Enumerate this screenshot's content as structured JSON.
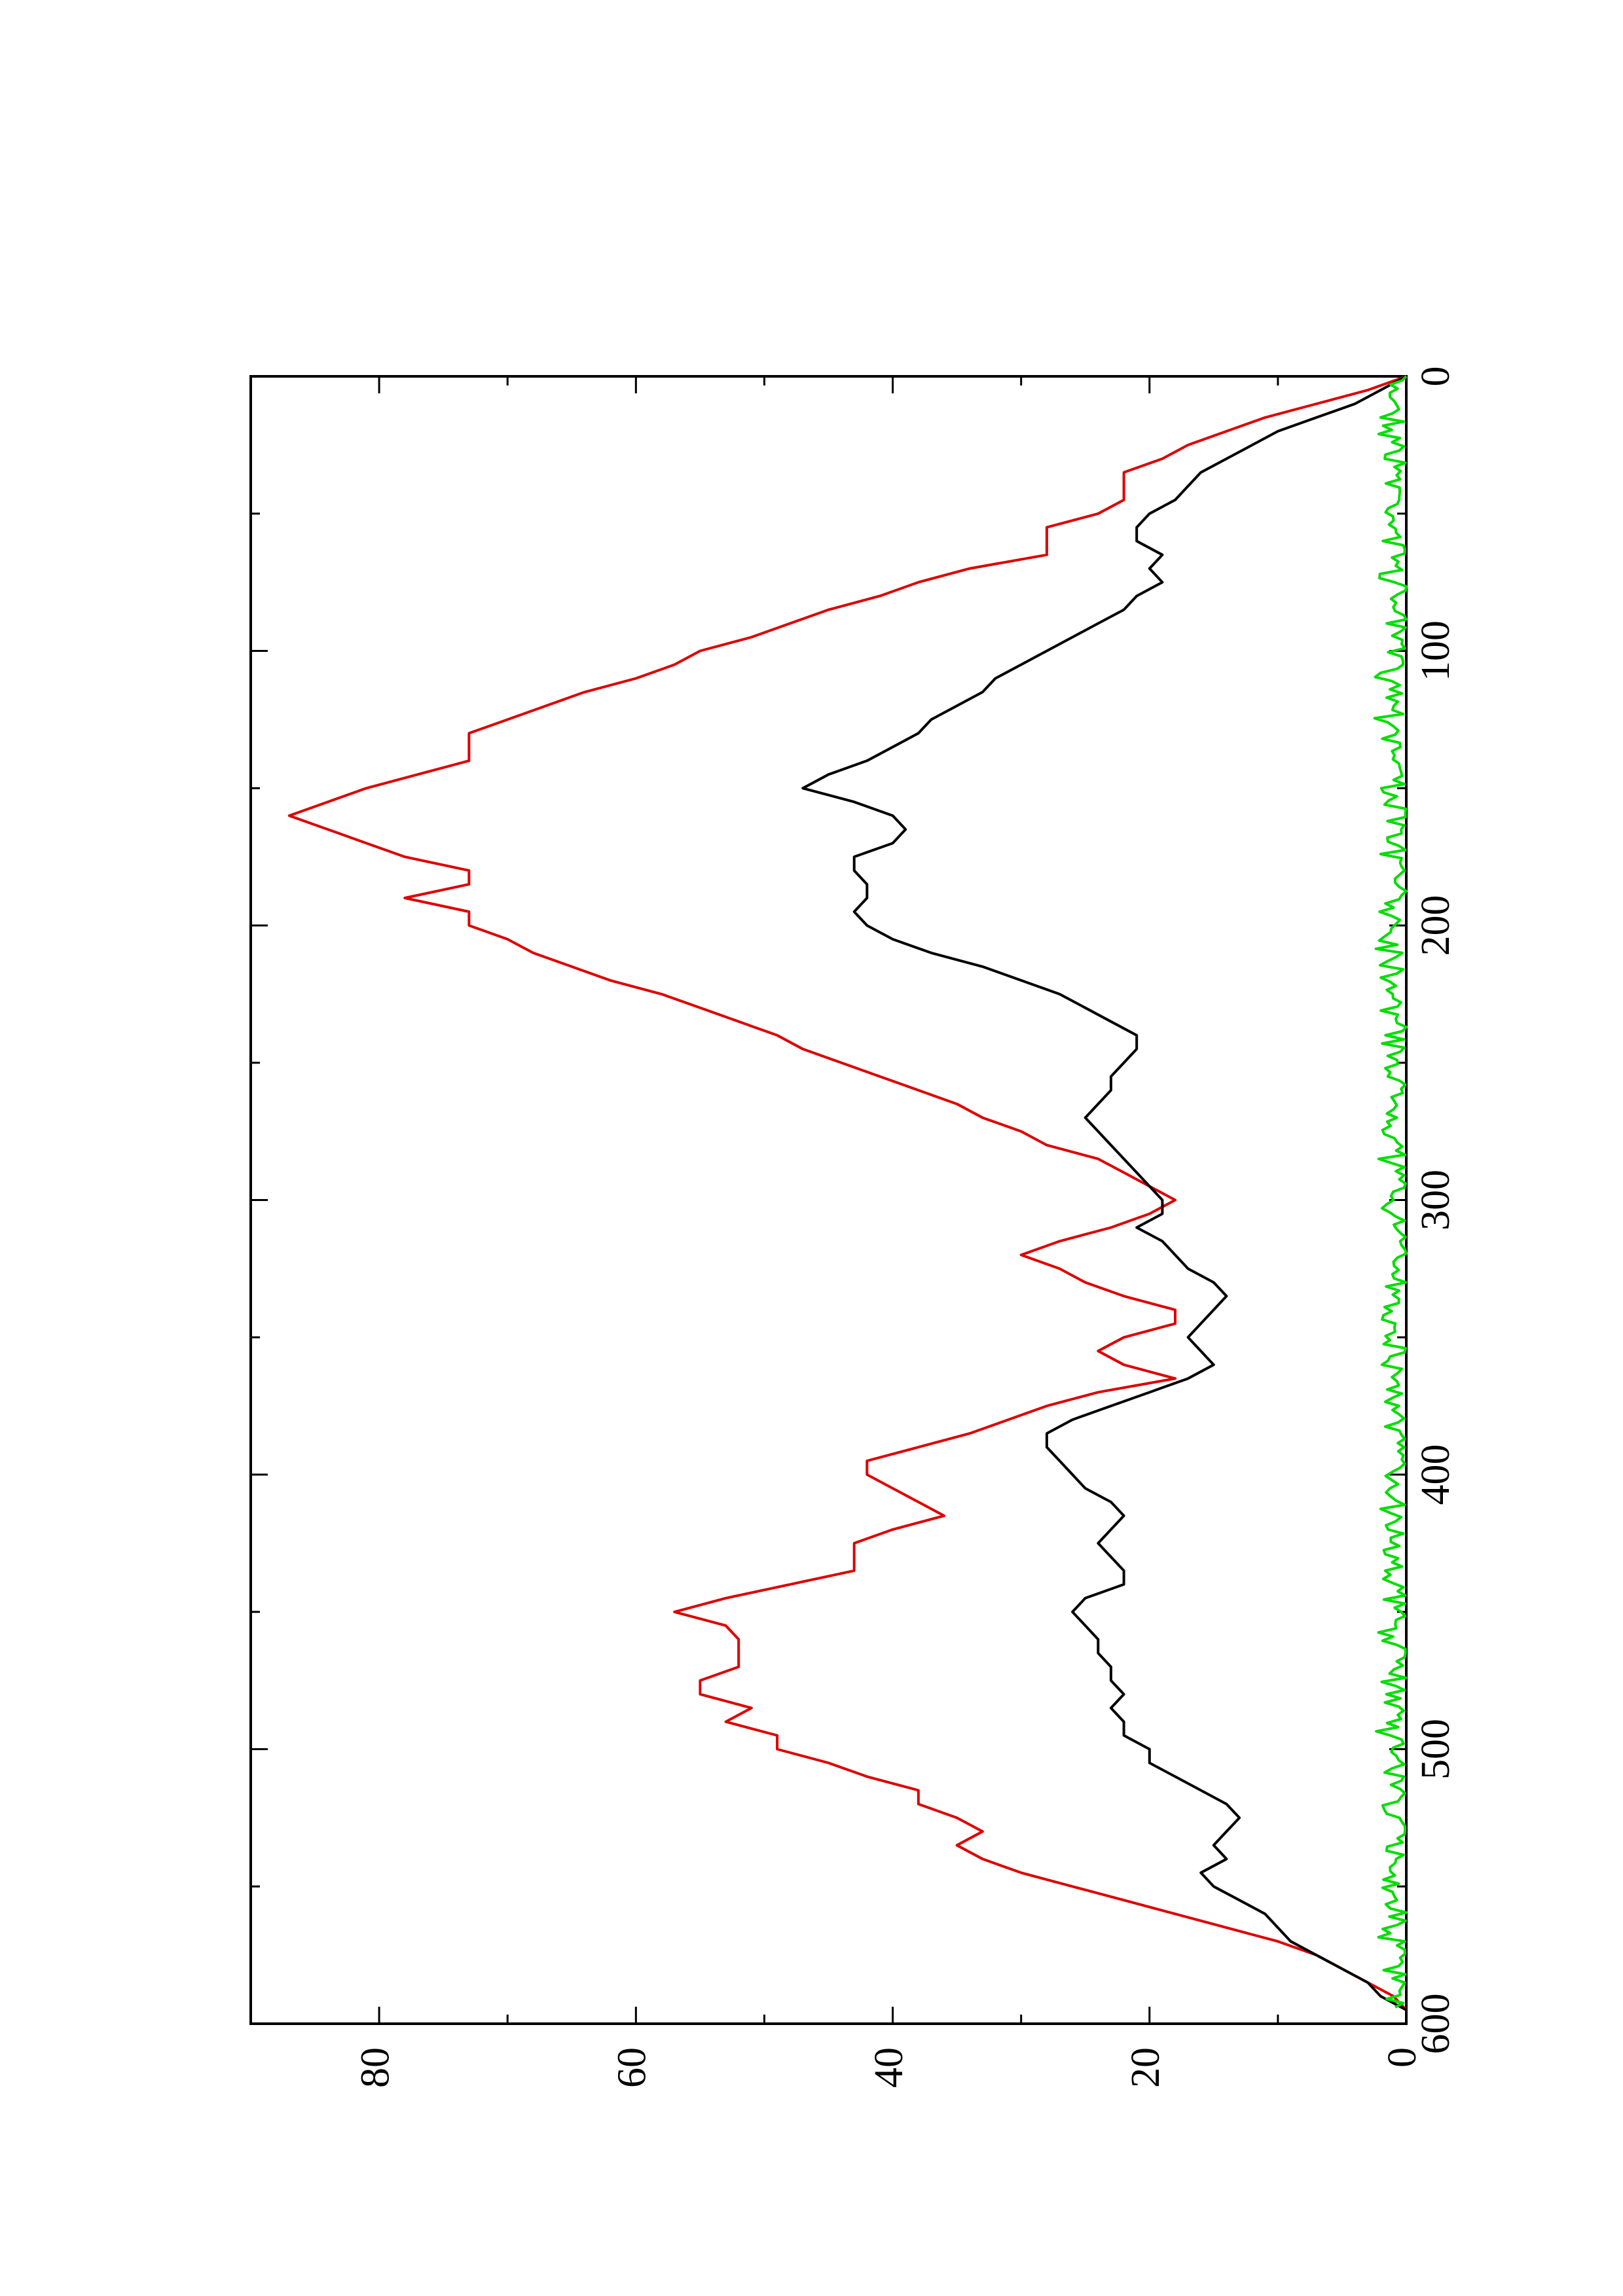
{
  "chart_data": {
    "type": "line",
    "title": "",
    "xlabel": "",
    "ylabel": "",
    "orientation": "rotated-90-ccw",
    "xlim": [
      0,
      600
    ],
    "ylim": [
      0,
      90
    ],
    "x_ticks_major": [
      0,
      100,
      200,
      300,
      400,
      500,
      600
    ],
    "x_ticks_minor": [
      50,
      150,
      250,
      350,
      450,
      550
    ],
    "y_ticks_major": [
      0,
      20,
      40,
      60,
      80
    ],
    "y_ticks_minor": [
      10,
      30,
      50,
      70
    ],
    "x_tick_labels": [
      "0",
      "100",
      "200",
      "300",
      "400",
      "500",
      "600"
    ],
    "y_tick_labels": [
      "0",
      "20",
      "40",
      "60",
      "80"
    ],
    "grid": false,
    "legend": "none",
    "series": [
      {
        "color": "#dd0000",
        "style": "step",
        "points": [
          [
            0,
            0
          ],
          [
            5,
            3
          ],
          [
            10,
            7
          ],
          [
            15,
            11
          ],
          [
            20,
            14
          ],
          [
            25,
            17
          ],
          [
            30,
            19
          ],
          [
            35,
            22
          ],
          [
            45,
            22
          ],
          [
            50,
            24
          ],
          [
            55,
            28
          ],
          [
            65,
            28
          ],
          [
            70,
            34
          ],
          [
            75,
            38
          ],
          [
            80,
            41
          ],
          [
            85,
            45
          ],
          [
            90,
            48
          ],
          [
            95,
            51
          ],
          [
            100,
            55
          ],
          [
            105,
            57
          ],
          [
            110,
            60
          ],
          [
            115,
            64
          ],
          [
            120,
            67
          ],
          [
            125,
            70
          ],
          [
            130,
            73
          ],
          [
            140,
            73
          ],
          [
            145,
            77
          ],
          [
            150,
            81
          ],
          [
            155,
            84
          ],
          [
            160,
            87
          ],
          [
            165,
            84
          ],
          [
            170,
            81
          ],
          [
            175,
            78
          ],
          [
            180,
            73
          ],
          [
            185,
            73
          ],
          [
            190,
            78
          ],
          [
            195,
            73
          ],
          [
            200,
            73
          ],
          [
            205,
            70
          ],
          [
            210,
            68
          ],
          [
            215,
            65
          ],
          [
            220,
            62
          ],
          [
            225,
            58
          ],
          [
            230,
            55
          ],
          [
            235,
            52
          ],
          [
            240,
            49
          ],
          [
            245,
            47
          ],
          [
            250,
            44
          ],
          [
            255,
            41
          ],
          [
            260,
            38
          ],
          [
            265,
            35
          ],
          [
            270,
            33
          ],
          [
            275,
            30
          ],
          [
            280,
            28
          ],
          [
            285,
            24
          ],
          [
            290,
            22
          ],
          [
            295,
            20
          ],
          [
            300,
            18
          ],
          [
            305,
            20
          ],
          [
            310,
            23
          ],
          [
            315,
            27
          ],
          [
            320,
            30
          ],
          [
            325,
            27
          ],
          [
            330,
            25
          ],
          [
            335,
            22
          ],
          [
            340,
            18
          ],
          [
            345,
            18
          ],
          [
            350,
            22
          ],
          [
            355,
            24
          ],
          [
            360,
            22
          ],
          [
            365,
            18
          ],
          [
            370,
            24
          ],
          [
            375,
            28
          ],
          [
            380,
            31
          ],
          [
            385,
            34
          ],
          [
            390,
            38
          ],
          [
            395,
            42
          ],
          [
            400,
            42
          ],
          [
            405,
            40
          ],
          [
            410,
            38
          ],
          [
            415,
            36
          ],
          [
            420,
            40
          ],
          [
            425,
            43
          ],
          [
            430,
            43
          ],
          [
            435,
            43
          ],
          [
            440,
            48
          ],
          [
            445,
            53
          ],
          [
            450,
            57
          ],
          [
            455,
            53
          ],
          [
            460,
            52
          ],
          [
            470,
            52
          ],
          [
            475,
            55
          ],
          [
            480,
            55
          ],
          [
            485,
            51
          ],
          [
            490,
            53
          ],
          [
            495,
            49
          ],
          [
            500,
            49
          ],
          [
            505,
            45
          ],
          [
            510,
            42
          ],
          [
            515,
            38
          ],
          [
            520,
            38
          ],
          [
            525,
            35
          ],
          [
            530,
            33
          ],
          [
            535,
            35
          ],
          [
            540,
            33
          ],
          [
            545,
            30
          ],
          [
            550,
            26
          ],
          [
            555,
            22
          ],
          [
            560,
            18
          ],
          [
            565,
            14
          ],
          [
            570,
            10
          ],
          [
            575,
            7
          ],
          [
            580,
            5
          ],
          [
            585,
            3
          ],
          [
            590,
            1
          ],
          [
            595,
            0
          ]
        ]
      },
      {
        "color": "#000000",
        "style": "line",
        "points": [
          [
            0,
            0
          ],
          [
            5,
            2
          ],
          [
            10,
            4
          ],
          [
            15,
            7
          ],
          [
            20,
            10
          ],
          [
            25,
            12
          ],
          [
            30,
            14
          ],
          [
            35,
            16
          ],
          [
            40,
            17
          ],
          [
            45,
            18
          ],
          [
            50,
            20
          ],
          [
            55,
            21
          ],
          [
            60,
            21
          ],
          [
            65,
            19
          ],
          [
            70,
            20
          ],
          [
            75,
            19
          ],
          [
            80,
            21
          ],
          [
            85,
            22
          ],
          [
            90,
            24
          ],
          [
            95,
            26
          ],
          [
            100,
            28
          ],
          [
            105,
            30
          ],
          [
            110,
            32
          ],
          [
            115,
            33
          ],
          [
            120,
            35
          ],
          [
            125,
            37
          ],
          [
            130,
            38
          ],
          [
            135,
            40
          ],
          [
            140,
            42
          ],
          [
            145,
            45
          ],
          [
            150,
            47
          ],
          [
            155,
            43
          ],
          [
            160,
            40
          ],
          [
            165,
            39
          ],
          [
            170,
            40
          ],
          [
            175,
            43
          ],
          [
            180,
            43
          ],
          [
            185,
            42
          ],
          [
            190,
            42
          ],
          [
            195,
            43
          ],
          [
            200,
            42
          ],
          [
            205,
            40
          ],
          [
            210,
            37
          ],
          [
            215,
            33
          ],
          [
            220,
            30
          ],
          [
            225,
            27
          ],
          [
            230,
            25
          ],
          [
            235,
            23
          ],
          [
            240,
            21
          ],
          [
            245,
            21
          ],
          [
            250,
            22
          ],
          [
            255,
            23
          ],
          [
            260,
            23
          ],
          [
            265,
            24
          ],
          [
            270,
            25
          ],
          [
            275,
            24
          ],
          [
            280,
            23
          ],
          [
            285,
            22
          ],
          [
            290,
            21
          ],
          [
            295,
            20
          ],
          [
            300,
            19
          ],
          [
            305,
            19
          ],
          [
            310,
            21
          ],
          [
            315,
            19
          ],
          [
            320,
            18
          ],
          [
            325,
            17
          ],
          [
            330,
            15
          ],
          [
            335,
            14
          ],
          [
            340,
            15
          ],
          [
            345,
            16
          ],
          [
            350,
            17
          ],
          [
            355,
            16
          ],
          [
            360,
            15
          ],
          [
            365,
            17
          ],
          [
            370,
            20
          ],
          [
            375,
            23
          ],
          [
            380,
            26
          ],
          [
            385,
            28
          ],
          [
            390,
            28
          ],
          [
            395,
            27
          ],
          [
            400,
            26
          ],
          [
            405,
            25
          ],
          [
            410,
            23
          ],
          [
            415,
            22
          ],
          [
            420,
            23
          ],
          [
            425,
            24
          ],
          [
            430,
            23
          ],
          [
            435,
            22
          ],
          [
            440,
            22
          ],
          [
            445,
            25
          ],
          [
            450,
            26
          ],
          [
            455,
            25
          ],
          [
            460,
            24
          ],
          [
            465,
            24
          ],
          [
            470,
            23
          ],
          [
            475,
            23
          ],
          [
            480,
            22
          ],
          [
            485,
            23
          ],
          [
            490,
            22
          ],
          [
            495,
            22
          ],
          [
            500,
            20
          ],
          [
            505,
            20
          ],
          [
            510,
            18
          ],
          [
            515,
            16
          ],
          [
            520,
            14
          ],
          [
            525,
            13
          ],
          [
            530,
            14
          ],
          [
            535,
            15
          ],
          [
            540,
            14
          ],
          [
            545,
            16
          ],
          [
            550,
            15
          ],
          [
            555,
            13
          ],
          [
            560,
            11
          ],
          [
            565,
            10
          ],
          [
            570,
            9
          ],
          [
            575,
            7
          ],
          [
            580,
            5
          ],
          [
            585,
            3
          ],
          [
            590,
            2
          ],
          [
            595,
            0
          ]
        ]
      },
      {
        "color": "#00dd00",
        "style": "noise",
        "amplitude": 1.8,
        "x_range": [
          0,
          595
        ]
      }
    ]
  }
}
